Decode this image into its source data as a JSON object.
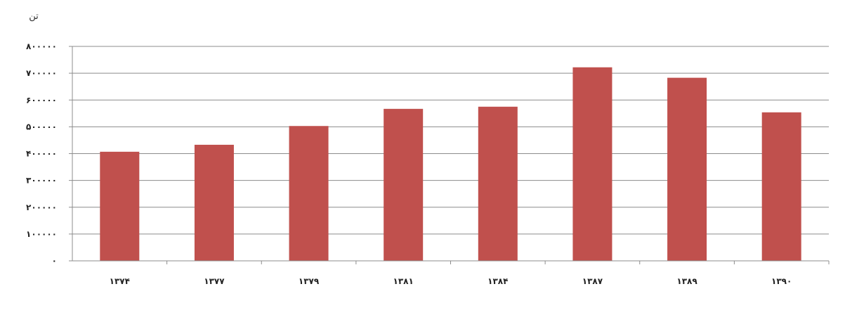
{
  "chart_data": {
    "type": "bar",
    "ylabel": "تن",
    "categories": [
      "۱۳۷۴",
      "۱۳۷۷",
      "۱۳۷۹",
      "۱۳۸۱",
      "۱۳۸۴",
      "۱۳۸۷",
      "۱۳۸۹",
      "۱۳۹۰"
    ],
    "values": [
      407000,
      433000,
      503000,
      567000,
      575000,
      722000,
      683000,
      554000
    ],
    "yticks": [
      0,
      100000,
      200000,
      300000,
      400000,
      500000,
      600000,
      700000,
      800000
    ],
    "ytick_labels": [
      "۰",
      "۱۰۰۰۰۰",
      "۲۰۰۰۰۰",
      "۳۰۰۰۰۰",
      "۴۰۰۰۰۰",
      "۵۰۰۰۰۰",
      "۶۰۰۰۰۰",
      "۷۰۰۰۰۰",
      "۸۰۰۰۰۰"
    ],
    "ylim": [
      0,
      800000
    ],
    "grid": true,
    "legend": "none",
    "bar_color": "#c0504d"
  }
}
